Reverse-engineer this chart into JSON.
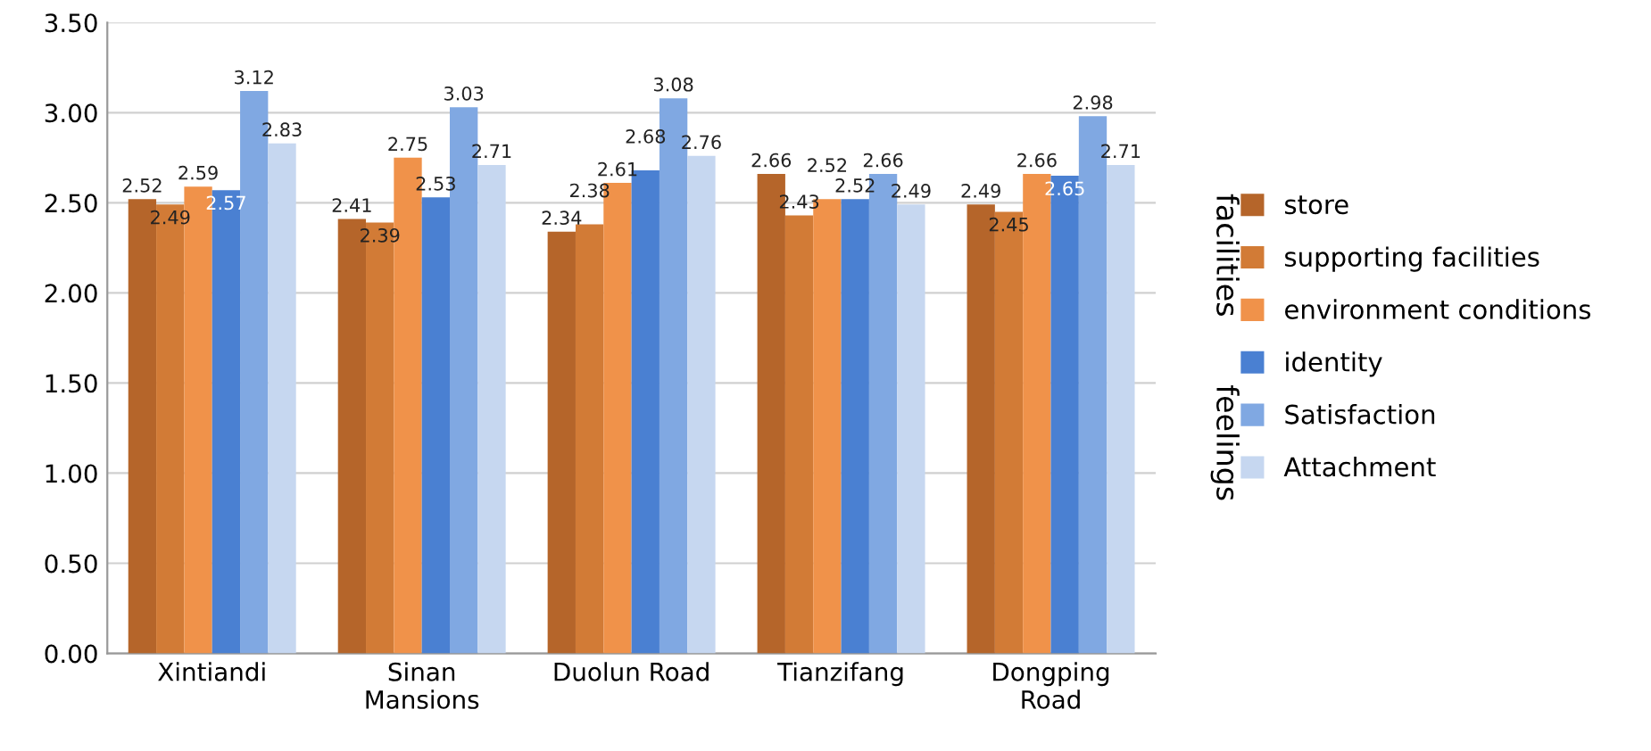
{
  "chart_data": {
    "type": "bar",
    "categories": [
      "Xintiandi",
      "Sinan\nMansions",
      "Duolun Road",
      "Tianzifang",
      "Dongping\nRoad"
    ],
    "series": [
      {
        "name": "store",
        "color": "#b5652a",
        "values": [
          2.52,
          2.41,
          2.34,
          2.66,
          2.49
        ]
      },
      {
        "name": "supporting facilities",
        "color": "#d27b36",
        "values": [
          2.49,
          2.39,
          2.38,
          2.43,
          2.45
        ]
      },
      {
        "name": "environment conditions",
        "color": "#f0924a",
        "values": [
          2.59,
          2.75,
          2.61,
          2.52,
          2.66
        ]
      },
      {
        "name": "identity",
        "color": "#4a80d2",
        "values": [
          2.57,
          2.53,
          2.68,
          2.52,
          2.65
        ]
      },
      {
        "name": "Satisfaction",
        "color": "#80a8e2",
        "values": [
          3.12,
          3.03,
          3.08,
          2.66,
          2.98
        ]
      },
      {
        "name": "Attachment",
        "color": "#c6d7f0",
        "values": [
          2.83,
          2.71,
          2.76,
          2.49,
          2.71
        ]
      }
    ],
    "ylim": [
      0,
      3.5
    ],
    "yticks": [
      {
        "value": 0,
        "label": "0.00"
      },
      {
        "value": 0.5,
        "label": "0.50"
      },
      {
        "value": 1,
        "label": "1.00"
      },
      {
        "value": 1.5,
        "label": "1.50"
      },
      {
        "value": 2,
        "label": "2.00"
      },
      {
        "value": 2.5,
        "label": "2.50"
      },
      {
        "value": 3,
        "label": "3.00"
      },
      {
        "value": 3.5,
        "label": "3.50"
      }
    ],
    "grid": "y",
    "legend": "right",
    "data_labels": true,
    "annotations": [
      "facilities",
      "feelings"
    ]
  }
}
